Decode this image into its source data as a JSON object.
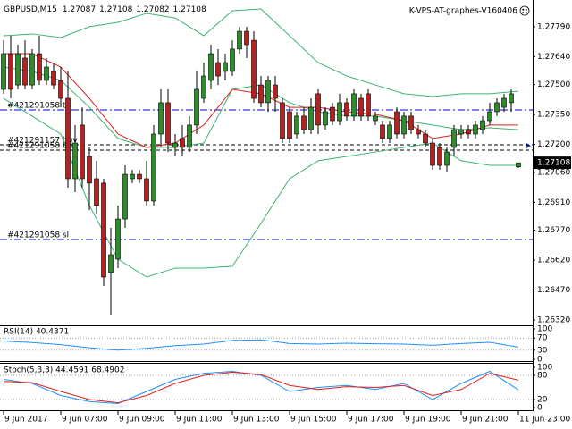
{
  "header": {
    "watermark": "IK-VPS-AT-graphes-V160406"
  },
  "chart_data": [
    {
      "type": "candlestick",
      "title": "GBPUSD,M15",
      "up_color": "#2e8b2e",
      "down_color": "#b22222",
      "open": [
        1.27476,
        1.27655,
        1.27498,
        1.27633,
        1.27498,
        1.27655,
        1.27521,
        1.27566,
        1.27521,
        1.27431,
        1.27028,
        1.27297,
        1.2714,
        1.27028,
        1.27006,
        1.26558,
        1.26625,
        1.26826,
        1.27028,
        1.2705,
        1.27028,
        1.26916,
        1.27252,
        1.27409,
        1.27185,
        1.2723,
        1.27185,
        1.27297,
        1.27431,
        1.27521,
        1.2761,
        1.27566,
        1.27566,
        1.27678,
        1.27767,
        1.27722,
        1.27498,
        1.27409,
        1.27498,
        1.27409,
        1.27364,
        1.27252,
        1.27342,
        1.27274,
        1.27454,
        1.27297,
        1.27386,
        1.27319,
        1.27409,
        1.27342,
        1.27431,
        1.27454,
        1.27319,
        1.27297,
        1.2723,
        1.27364,
        1.27252,
        1.27342,
        1.27274,
        1.27252,
        1.27207,
        1.27185,
        1.27095,
        1.27185,
        1.27252,
        1.27274,
        1.27252,
        1.27274,
        1.27319,
        1.27364,
        1.27386,
        1.27409,
        1.27087
      ],
      "high": [
        1.27722,
        1.27745,
        1.277,
        1.27722,
        1.27678,
        1.27745,
        1.27633,
        1.2761,
        1.27588,
        1.27566,
        1.27297,
        1.27386,
        1.27185,
        1.27118,
        1.27028,
        1.26782,
        1.26894,
        1.27095,
        1.27073,
        1.27073,
        1.27118,
        1.27297,
        1.27476,
        1.27476,
        1.27252,
        1.27297,
        1.27342,
        1.27566,
        1.2761,
        1.277,
        1.27678,
        1.27655,
        1.27722,
        1.2779,
        1.2779,
        1.27767,
        1.27543,
        1.27543,
        1.27543,
        1.27431,
        1.27386,
        1.27364,
        1.27386,
        1.27431,
        1.27476,
        1.27386,
        1.27409,
        1.27454,
        1.27431,
        1.27476,
        1.27454,
        1.27476,
        1.27364,
        1.27319,
        1.27319,
        1.27386,
        1.27364,
        1.27364,
        1.27297,
        1.27274,
        1.2723,
        1.27207,
        1.27185,
        1.27297,
        1.27297,
        1.27297,
        1.27319,
        1.27342,
        1.27409,
        1.27431,
        1.27454,
        1.27476,
        1.27108
      ],
      "low": [
        1.27454,
        1.27431,
        1.27476,
        1.27476,
        1.27476,
        1.27498,
        1.27498,
        1.27476,
        1.27386,
        1.26983,
        1.26961,
        1.26983,
        1.26871,
        1.26849,
        1.2649,
        1.26347,
        1.2658,
        1.26782,
        1.27006,
        1.27006,
        1.26894,
        1.26894,
        1.27185,
        1.27162,
        1.2714,
        1.2714,
        1.27162,
        1.27252,
        1.27409,
        1.27476,
        1.27498,
        1.27521,
        1.27543,
        1.27655,
        1.27633,
        1.27409,
        1.27386,
        1.27364,
        1.27364,
        1.27207,
        1.27207,
        1.2723,
        1.27252,
        1.27252,
        1.27252,
        1.27274,
        1.27297,
        1.27297,
        1.27319,
        1.27319,
        1.27319,
        1.27319,
        1.27297,
        1.27207,
        1.27207,
        1.2723,
        1.2723,
        1.27252,
        1.2723,
        1.27185,
        1.27073,
        1.27073,
        1.27064,
        1.2714,
        1.2723,
        1.2723,
        1.2723,
        1.27252,
        1.27297,
        1.27342,
        1.27364,
        1.27364,
        1.27082
      ],
      "close": [
        1.27655,
        1.27476,
        1.27655,
        1.27498,
        1.27655,
        1.27521,
        1.27588,
        1.27498,
        1.27431,
        1.27028,
        1.27207,
        1.27028,
        1.27006,
        1.26894,
        1.26535,
        1.26647,
        1.26826,
        1.2705,
        1.2705,
        1.27028,
        1.26916,
        1.27252,
        1.27409,
        1.27207,
        1.27207,
        1.27185,
        1.27297,
        1.27476,
        1.27543,
        1.27655,
        1.27543,
        1.2761,
        1.27678,
        1.27767,
        1.277,
        1.27431,
        1.27409,
        1.27521,
        1.27431,
        1.2723,
        1.2723,
        1.27342,
        1.27274,
        1.27386,
        1.27297,
        1.27364,
        1.27319,
        1.27409,
        1.27342,
        1.27454,
        1.27342,
        1.27342,
        1.27342,
        1.2723,
        1.27297,
        1.27252,
        1.27342,
        1.27274,
        1.27252,
        1.27207,
        1.27095,
        1.27095,
        1.27162,
        1.27274,
        1.27274,
        1.27252,
        1.27297,
        1.27319,
        1.27364,
        1.27409,
        1.27431,
        1.27454,
        1.27108
      ],
      "line_x": [
        0,
        4,
        8,
        12,
        16,
        20,
        24,
        28,
        32,
        36,
        40,
        44,
        48,
        52,
        56,
        60,
        64,
        68,
        72
      ],
      "lines": [
        {
          "color": "#3cb371",
          "values": [
            1.27745,
            1.27754,
            1.27736,
            1.2779,
            1.27812,
            1.27857,
            1.27834,
            1.27745,
            1.2787,
            1.27879,
            1.27745,
            1.2761,
            1.27543,
            1.27498,
            1.27454,
            1.2744,
            1.27454,
            1.27454,
            1.27467
          ]
        },
        {
          "color": "#3cb371",
          "values": [
            1.27588,
            1.27566,
            1.27521,
            1.27386,
            1.2723,
            1.27185,
            1.27185,
            1.27207,
            1.27476,
            1.27498,
            1.27409,
            1.27364,
            1.27342,
            1.27342,
            1.27319,
            1.27297,
            1.27274,
            1.27283,
            1.27274
          ]
        },
        {
          "color": "#3cb371",
          "values": [
            1.27431,
            1.27342,
            1.27252,
            1.26894,
            1.26625,
            1.26535,
            1.2658,
            1.2658,
            1.26589,
            1.26804,
            1.27028,
            1.27118,
            1.2714,
            1.27162,
            1.27185,
            1.27207,
            1.27118,
            1.27095,
            1.27095
          ]
        },
        {
          "color": "#e0201b",
          "values": [
            1.27655,
            1.27655,
            1.27588,
            1.27431,
            1.27252,
            1.27185,
            1.27207,
            1.27297,
            1.27476,
            1.27454,
            1.27386,
            1.27386,
            1.27364,
            1.27351,
            1.27319,
            1.2723,
            1.27252,
            1.27297,
            1.27297
          ]
        }
      ],
      "orders": [
        {
          "label": "#421291058 tp",
          "value": 1.27373,
          "color": "#0000cd"
        },
        {
          "label": "#421291157 buy",
          "value": 1.27198,
          "color": "#000000"
        },
        {
          "label": "#421291058 buy",
          "value": 1.27171,
          "color": "#000000"
        },
        {
          "label": "#421291058 sl",
          "value": 1.26723,
          "color": "#0000cd"
        }
      ],
      "xlim": [
        -0.5,
        74
      ],
      "ylim": [
        1.26302,
        1.27924
      ],
      "yticks": [
        {
          "value": 1.2779,
          "label": "1.27790"
        },
        {
          "value": 1.2764,
          "label": "1.27640"
        },
        {
          "value": 1.275,
          "label": "1.27500"
        },
        {
          "value": 1.2735,
          "label": "1.27350"
        },
        {
          "value": 1.272,
          "label": "1.27200"
        },
        {
          "value": 1.2706,
          "label": "1.27060"
        },
        {
          "value": 1.2691,
          "label": "1.26910"
        },
        {
          "value": 1.2677,
          "label": "1.26770"
        },
        {
          "value": 1.2662,
          "label": "1.26620"
        },
        {
          "value": 1.2647,
          "label": "1.26470"
        },
        {
          "value": 1.2632,
          "label": "1.26320"
        }
      ],
      "xticks": [
        {
          "value": 0,
          "label": "9 Jun 2017"
        },
        {
          "value": 8,
          "label": "9 Jun 07:00"
        },
        {
          "value": 16,
          "label": "9 Jun 09:00"
        },
        {
          "value": 24,
          "label": "9 Jun 11:00"
        },
        {
          "value": 32,
          "label": "9 Jun 13:00"
        },
        {
          "value": 40,
          "label": "9 Jun 15:00"
        },
        {
          "value": 48,
          "label": "9 Jun 17:00"
        },
        {
          "value": 56,
          "label": "9 Jun 19:00"
        },
        {
          "value": 64,
          "label": "9 Jun 21:00"
        },
        {
          "value": 72,
          "label": "11 Jun 23:00"
        }
      ]
    },
    {
      "type": "line",
      "title": "RSI(14) 40.4371",
      "x": [
        0,
        4,
        8,
        12,
        16,
        20,
        24,
        28,
        32,
        36,
        40,
        44,
        48,
        52,
        56,
        60,
        64,
        68,
        72
      ],
      "series": [
        {
          "color": "#1e90ff",
          "values": [
            60,
            55,
            48,
            38,
            30,
            36,
            45,
            50,
            62,
            64,
            52,
            50,
            53,
            51,
            50,
            46,
            52,
            56,
            40
          ]
        }
      ],
      "levels": [
        70,
        30
      ],
      "xlim": [
        -0.5,
        74
      ],
      "ylim": [
        0,
        100
      ],
      "yticks": [
        100,
        70,
        30,
        0
      ]
    },
    {
      "type": "line",
      "title": "Stoch(5,3,3) 44.4591 68.4902",
      "x": [
        0,
        4,
        8,
        12,
        16,
        20,
        24,
        28,
        32,
        36,
        40,
        44,
        48,
        52,
        56,
        60,
        64,
        68,
        72
      ],
      "series": [
        {
          "color": "#1e90ff",
          "values": [
            70,
            60,
            30,
            15,
            10,
            40,
            70,
            85,
            90,
            80,
            40,
            50,
            55,
            45,
            60,
            20,
            60,
            90,
            44
          ]
        },
        {
          "color": "#e0201b",
          "values": [
            65,
            62,
            40,
            20,
            12,
            30,
            60,
            80,
            88,
            82,
            55,
            45,
            52,
            50,
            55,
            30,
            45,
            85,
            68
          ]
        }
      ],
      "levels": [
        80,
        20
      ],
      "xlim": [
        -0.5,
        74
      ],
      "ylim": [
        0,
        100
      ],
      "yticks": [
        100,
        80,
        20,
        0
      ]
    }
  ]
}
